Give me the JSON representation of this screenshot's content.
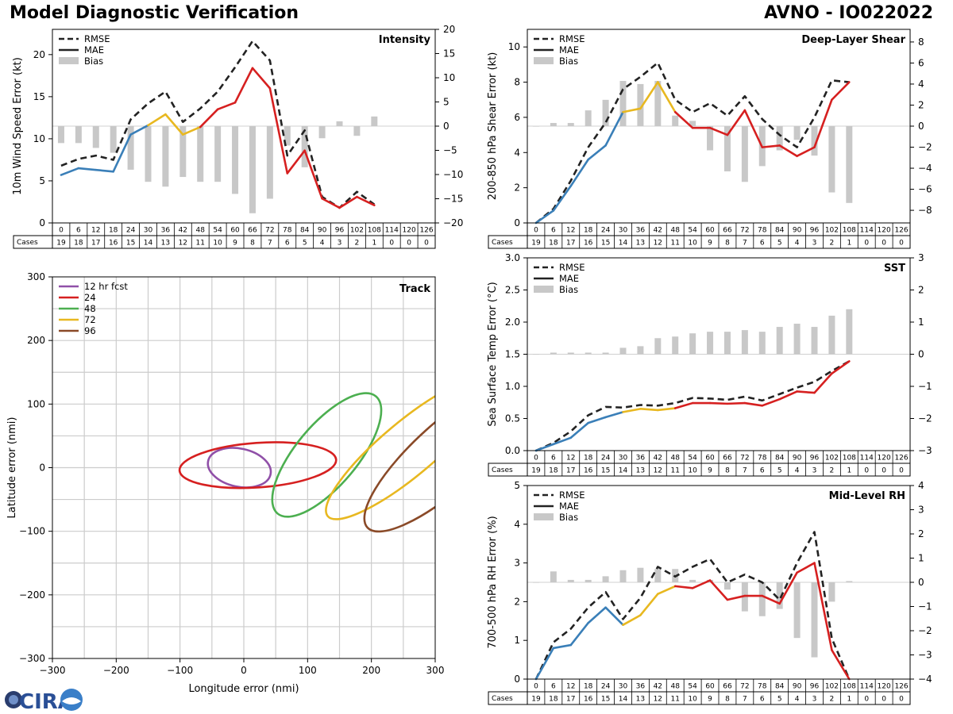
{
  "header": {
    "title": "Model Diagnostic Verification",
    "storm": "AVNO - IO022022"
  },
  "logo": {
    "text": "CIRA"
  },
  "colors": {
    "early": "#3a7fb8",
    "mid": "#e8b820",
    "late": "#d62020",
    "rmse": "#222222",
    "bias": "#c8c8c8"
  },
  "legend_labels": {
    "rmse": "RMSE",
    "mae": "MAE",
    "bias": "Bias"
  },
  "table": {
    "cases_label": "Cases",
    "hours": [
      "0",
      "6",
      "12",
      "18",
      "24",
      "30",
      "36",
      "42",
      "48",
      "54",
      "60",
      "66",
      "72",
      "78",
      "84",
      "90",
      "96",
      "102",
      "108",
      "114",
      "120",
      "126"
    ],
    "cases": [
      "19",
      "18",
      "17",
      "16",
      "15",
      "14",
      "13",
      "12",
      "11",
      "10",
      "9",
      "8",
      "7",
      "6",
      "5",
      "4",
      "3",
      "2",
      "1",
      "0",
      "0",
      "0"
    ]
  },
  "chart_data": [
    {
      "id": "intensity",
      "type": "line",
      "title": "Intensity",
      "ylabel": "10m Wind Speed Error (kt)",
      "ylim": [
        0,
        23
      ],
      "yticks": [
        0,
        5,
        10,
        15,
        20
      ],
      "y2lim": [
        -20,
        20
      ],
      "y2ticks": [
        -20,
        -15,
        -10,
        -5,
        0,
        5,
        10,
        15,
        20
      ],
      "x": [
        0,
        6,
        12,
        18,
        24,
        30,
        36,
        42,
        48,
        54,
        60,
        66,
        72,
        78,
        84,
        90,
        96,
        102,
        108
      ],
      "rmse": [
        6.8,
        7.6,
        8.0,
        7.5,
        12.3,
        14.2,
        15.6,
        12.0,
        13.6,
        15.6,
        18.5,
        21.6,
        19.3,
        8.0,
        11.0,
        3.1,
        1.8,
        3.7,
        2.2
      ],
      "mae": [
        5.7,
        6.5,
        6.3,
        6.1,
        10.5,
        11.6,
        12.9,
        10.5,
        11.4,
        13.5,
        14.3,
        18.4,
        16.0,
        5.9,
        8.6,
        2.9,
        1.8,
        3.1,
        2.1
      ],
      "bias": [
        -3.5,
        -3.5,
        -4.5,
        -5.5,
        -9,
        -11.5,
        -12.5,
        -10.5,
        -11.5,
        -11.5,
        -14,
        -18,
        -15,
        -4,
        -8.5,
        -2.5,
        1,
        -2,
        2
      ]
    },
    {
      "id": "shear",
      "type": "line",
      "title": "Deep-Layer Shear",
      "ylabel": "200-850 hPa Shear Error (kt)",
      "ylim": [
        0,
        11
      ],
      "yticks": [
        0,
        2,
        4,
        6,
        8,
        10
      ],
      "y2lim": [
        -9.2,
        9.2
      ],
      "y2ticks": [
        -8,
        -6,
        -4,
        -2,
        0,
        2,
        4,
        6,
        8
      ],
      "x": [
        0,
        6,
        12,
        18,
        24,
        30,
        36,
        42,
        48,
        54,
        60,
        66,
        72,
        78,
        84,
        90,
        96,
        102,
        108
      ],
      "rmse": [
        0.0,
        0.8,
        2.4,
        4.3,
        5.7,
        7.6,
        8.3,
        9.1,
        7.0,
        6.3,
        6.8,
        6.1,
        7.2,
        5.9,
        5.0,
        4.3,
        6.0,
        8.1,
        8.0
      ],
      "mae": [
        0.0,
        0.7,
        2.1,
        3.6,
        4.4,
        6.3,
        6.5,
        8.0,
        6.3,
        5.4,
        5.4,
        5.0,
        6.4,
        4.3,
        4.4,
        3.8,
        4.3,
        7.0,
        8.0
      ],
      "bias": [
        0,
        0.3,
        0.3,
        1.5,
        2.5,
        4.3,
        4.0,
        4.3,
        1.0,
        0.5,
        -2.3,
        -4.3,
        -5.3,
        -3.8,
        -2.3,
        -1.3,
        -2.8,
        -6.3,
        -7.3
      ]
    },
    {
      "id": "sst",
      "type": "line",
      "title": "SST",
      "ylabel": "Sea Surface Temp Error (°C)",
      "ylim": [
        0,
        3.0
      ],
      "yticks": [
        0.0,
        0.5,
        1.0,
        1.5,
        2.0,
        2.5,
        3.0
      ],
      "y2lim": [
        -3,
        3
      ],
      "y2ticks": [
        -3,
        -2,
        -1,
        0,
        1,
        2,
        3
      ],
      "x": [
        0,
        6,
        12,
        18,
        24,
        30,
        36,
        42,
        48,
        54,
        60,
        66,
        72,
        78,
        84,
        90,
        96,
        102,
        108
      ],
      "rmse": [
        0.0,
        0.12,
        0.3,
        0.55,
        0.68,
        0.67,
        0.71,
        0.7,
        0.74,
        0.82,
        0.81,
        0.79,
        0.84,
        0.78,
        0.88,
        0.98,
        1.07,
        1.24,
        1.39
      ],
      "mae": [
        0.0,
        0.1,
        0.2,
        0.43,
        0.52,
        0.6,
        0.65,
        0.63,
        0.66,
        0.74,
        0.74,
        0.73,
        0.74,
        0.7,
        0.8,
        0.92,
        0.9,
        1.2,
        1.39
      ],
      "bias": [
        0,
        0.05,
        0.05,
        0.05,
        0.05,
        0.2,
        0.25,
        0.5,
        0.55,
        0.65,
        0.7,
        0.7,
        0.75,
        0.7,
        0.85,
        0.95,
        0.85,
        1.2,
        1.4
      ]
    },
    {
      "id": "rh",
      "type": "line",
      "title": "Mid-Level RH",
      "ylabel": "700-500 hPa RH Error (%)",
      "ylim": [
        0,
        5
      ],
      "yticks": [
        0,
        1,
        2,
        3,
        4,
        5
      ],
      "y2lim": [
        -4,
        4
      ],
      "y2ticks": [
        -4,
        -3,
        -2,
        -1,
        0,
        1,
        2,
        3,
        4
      ],
      "x": [
        0,
        6,
        12,
        18,
        24,
        30,
        36,
        42,
        48,
        54,
        60,
        66,
        72,
        78,
        84,
        90,
        96,
        102,
        108
      ],
      "rmse": [
        0.0,
        0.95,
        1.3,
        1.85,
        2.25,
        1.55,
        2.1,
        2.9,
        2.65,
        2.9,
        3.1,
        2.5,
        2.7,
        2.5,
        2.05,
        3.0,
        3.8,
        1.05,
        0.0
      ],
      "mae": [
        0.0,
        0.8,
        0.88,
        1.45,
        1.85,
        1.4,
        1.65,
        2.2,
        2.4,
        2.35,
        2.55,
        2.05,
        2.15,
        2.15,
        1.95,
        2.75,
        3.0,
        0.75,
        0.0
      ],
      "bias": [
        0,
        0.45,
        0.1,
        0.1,
        0.25,
        0.5,
        0.6,
        0.55,
        0.55,
        0.1,
        0.1,
        -0.3,
        -1.2,
        -1.4,
        -1.1,
        -2.3,
        -3.1,
        -0.8,
        0.05
      ]
    },
    {
      "id": "track",
      "type": "scatter",
      "title": "Track",
      "xlabel": "Longitude error (nmi)",
      "ylabel": "Latitude error (nmi)",
      "xlim": [
        -300,
        300
      ],
      "ylim": [
        -300,
        300
      ],
      "ticks": [
        -300,
        -200,
        -100,
        0,
        100,
        200,
        300
      ],
      "legend": [
        "12 hr fcst",
        "24",
        "48",
        "72",
        "96"
      ],
      "ellipses": [
        {
          "name": "12 hr fcst",
          "color": "#9050a8",
          "cx": -7,
          "cy": 0,
          "a": 50,
          "b": 30,
          "angle": -12
        },
        {
          "name": "24",
          "color": "#d62020",
          "cx": 22,
          "cy": 4,
          "a": 123,
          "b": 35,
          "angle": 4
        },
        {
          "name": "48",
          "color": "#4caf50",
          "cx": 130,
          "cy": 20,
          "a": 120,
          "b": 48,
          "angle": 50
        },
        {
          "name": "72",
          "color": "#e8b820",
          "cx": 258,
          "cy": 30,
          "a": 165,
          "b": 42,
          "angle": 40
        },
        {
          "name": "96",
          "color": "#8a4a28",
          "cx": 320,
          "cy": 20,
          "a": 170,
          "b": 52,
          "angle": 42
        }
      ]
    }
  ]
}
